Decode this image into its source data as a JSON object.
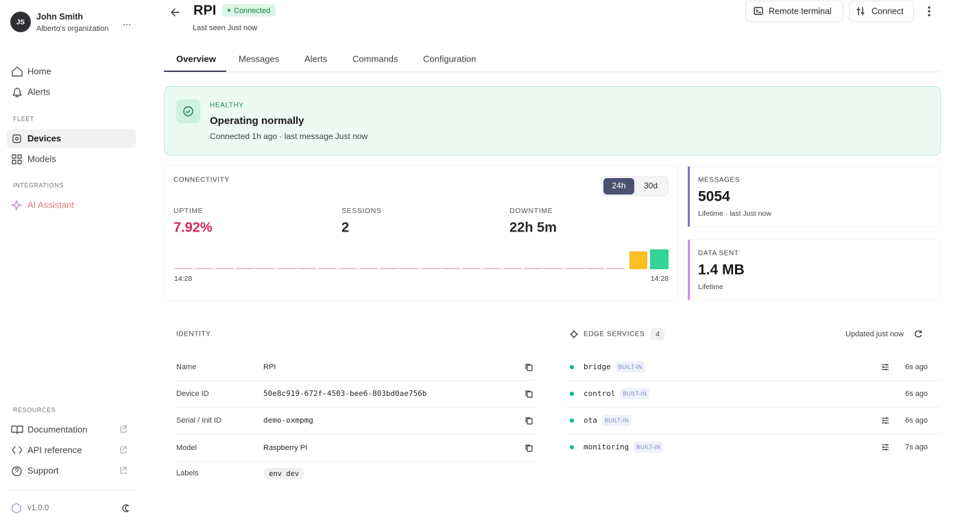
{
  "sidebar": {
    "user": {
      "initials": "JS",
      "name": "John Smith",
      "org": "Alberto's organization"
    },
    "nav": [
      "Home",
      "Alerts"
    ],
    "sections": [
      {
        "title": "FLEET",
        "items": [
          "Devices",
          "Models"
        ]
      },
      {
        "title": "INTEGRATIONS",
        "items": [
          "AI Assistant"
        ]
      },
      {
        "title": "RESOURCES",
        "items": [
          "Documentation",
          "API reference",
          "Support"
        ]
      }
    ],
    "version": "v1.0.0"
  },
  "header": {
    "title": "RPI",
    "status": "Connected",
    "last_seen": "Last seen Just now",
    "buttons": [
      "Remote terminal",
      "Connect"
    ]
  },
  "tabs": [
    "Overview",
    "Messages",
    "Alerts",
    "Commands",
    "Configuration"
  ],
  "health": {
    "label": "HEALTHY",
    "title": "Operating normally",
    "detail": "Connected 1h ago · last message Just now"
  },
  "connectivity": {
    "title": "CONNECTIVITY",
    "ranges": [
      "24h",
      "30d"
    ],
    "stats": [
      {
        "label": "UPTIME",
        "value": "7.92%"
      },
      {
        "label": "SESSIONS",
        "value": 2
      },
      {
        "label": "DOWNTIME",
        "value": "22h 5m"
      }
    ],
    "timeline": {
      "start": "14:28",
      "end": "14:28"
    }
  },
  "metrics": [
    {
      "label": "MESSAGES",
      "value": 5054,
      "note": "Lifetime · last Just now"
    },
    {
      "label": "DATA SENT",
      "value": "1.4 MB",
      "note": "Lifetime"
    }
  ],
  "identity": {
    "title": "IDENTITY",
    "rows": [
      [
        "Name",
        "RPI"
      ],
      [
        "Device ID",
        "50e8c919-672f-4503-bee6-803bd0ae756b"
      ],
      [
        "Serial / Init ID",
        "demo-oxmpmg"
      ],
      [
        "Model",
        "Raspberry PI"
      ]
    ],
    "labels": {
      "label": "Labels",
      "tags": [
        "env dev"
      ]
    }
  },
  "edge_services": {
    "title": "EDGE SERVICES",
    "count": 4,
    "updated": "Updated just now",
    "services": [
      {
        "name": "bridge",
        "badge": "BUILT-IN",
        "time": "6s ago"
      },
      {
        "name": "control",
        "badge": "BUILT-IN",
        "time": "6s ago"
      },
      {
        "name": "ota",
        "badge": "BUILT-IN",
        "time": "6s ago"
      },
      {
        "name": "monitoring",
        "badge": "BUILT-IN",
        "time": "7s ago"
      }
    ]
  }
}
